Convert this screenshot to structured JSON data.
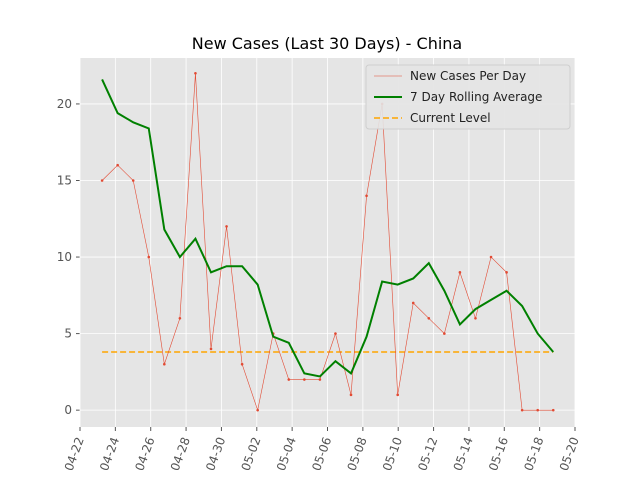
{
  "chart_data": {
    "type": "line",
    "title": "New Cases (Last 30 Days) - China",
    "x": [
      1.25,
      2.13,
      3.01,
      3.89,
      4.77,
      5.65,
      6.53,
      7.41,
      8.29,
      9.17,
      10.05,
      10.93,
      11.81,
      12.69,
      13.57,
      14.45,
      15.33,
      16.21,
      17.09,
      17.97,
      18.85,
      19.73,
      20.61,
      21.49,
      22.37,
      23.25,
      24.13,
      25.01,
      25.89,
      26.77
    ],
    "series": [
      {
        "name": "New Cases Per Day",
        "color": "#e24a33",
        "values": [
          15,
          16,
          15,
          10,
          3,
          6,
          22,
          4,
          12,
          3,
          0,
          5,
          2,
          2,
          2,
          5,
          1,
          14,
          20,
          1,
          7,
          6,
          5,
          9,
          6,
          10,
          9,
          0,
          0,
          0
        ]
      },
      {
        "name": "7 Day Rolling Average",
        "color": "#008000",
        "values": [
          21.6,
          19.4,
          18.8,
          18.4,
          11.8,
          10,
          11.2,
          9,
          9.4,
          9.4,
          8.2,
          4.8,
          4.4,
          2.4,
          2.2,
          3.2,
          2.4,
          4.8,
          8.4,
          8.2,
          8.6,
          9.6,
          7.8,
          5.6,
          6.6,
          7.2,
          7.8,
          6.8,
          5,
          3.8
        ]
      }
    ],
    "reference_line": {
      "name": "Current Level",
      "color": "#ffa500",
      "value": 3.8
    },
    "xlim": [
      0,
      28
    ],
    "xticks": [
      {
        "value": 0,
        "label": "04-22"
      },
      {
        "value": 2,
        "label": "04-24"
      },
      {
        "value": 4,
        "label": "04-26"
      },
      {
        "value": 6,
        "label": "04-28"
      },
      {
        "value": 8,
        "label": "04-30"
      },
      {
        "value": 10,
        "label": "05-02"
      },
      {
        "value": 12,
        "label": "05-04"
      },
      {
        "value": 14,
        "label": "05-06"
      },
      {
        "value": 16,
        "label": "05-08"
      },
      {
        "value": 18,
        "label": "05-10"
      },
      {
        "value": 20,
        "label": "05-12"
      },
      {
        "value": 22,
        "label": "05-14"
      },
      {
        "value": 24,
        "label": "05-16"
      },
      {
        "value": 26,
        "label": "05-18"
      },
      {
        "value": 28,
        "label": "05-20"
      }
    ],
    "ylim": [
      -1.1,
      23
    ],
    "yticks": [
      0,
      5,
      10,
      15,
      20
    ],
    "grid": true,
    "legend": "upper right"
  }
}
